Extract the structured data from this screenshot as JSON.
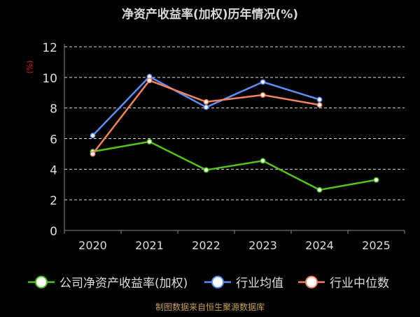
{
  "chart_data": {
    "type": "line",
    "title": "净资产收益率(加权)历年情况(%)",
    "ylabel": "(%)",
    "xlabel": "",
    "categories": [
      "2020",
      "2021",
      "2022",
      "2023",
      "2024",
      "2025"
    ],
    "ylim": [
      0,
      12
    ],
    "yticks": [
      0,
      2,
      4,
      6,
      8,
      10,
      12
    ],
    "grid": true,
    "legend_position": "bottom",
    "series": [
      {
        "name": "公司净资产收益率(加权)",
        "color": "#52c41a",
        "values": [
          5.15,
          5.8,
          3.95,
          4.55,
          2.65,
          3.3
        ]
      },
      {
        "name": "行业均值",
        "color": "#5b8ff9",
        "values": [
          6.2,
          10.05,
          8.05,
          9.7,
          8.55,
          null
        ]
      },
      {
        "name": "行业中位数",
        "color": "#f4845f",
        "values": [
          5.0,
          9.8,
          8.4,
          8.85,
          8.2,
          null
        ]
      }
    ],
    "footer": "制图数据来自恒生聚源数据库",
    "colors": {
      "background": "#000000",
      "axis": "#888888",
      "grid": "#ffffff",
      "text": "#dddddd",
      "ylabel": "#e02020",
      "footer": "#c8a050"
    }
  }
}
